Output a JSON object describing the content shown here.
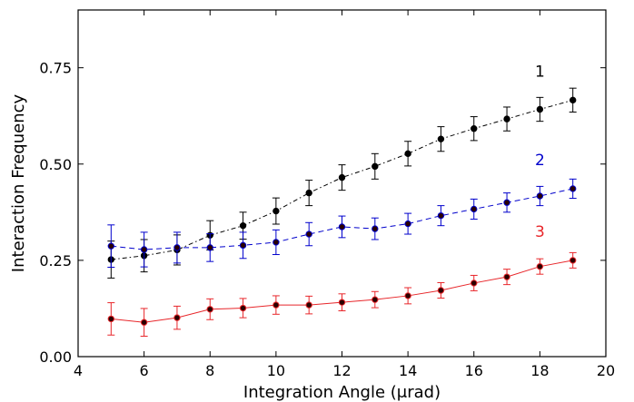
{
  "chart_data": {
    "type": "line",
    "title": "",
    "xlabel": "Integration Angle (μrad)",
    "ylabel": "Interaction Frequency",
    "xlim": [
      4,
      20
    ],
    "ylim": [
      0,
      0.9
    ],
    "xticks": [
      4,
      6,
      8,
      10,
      12,
      14,
      16,
      18,
      20
    ],
    "yticks": [
      0.0,
      0.25,
      0.5,
      0.75
    ],
    "ytick_labels": [
      "0.00",
      "0.25",
      "0.50",
      "0.75"
    ],
    "grid": false,
    "x": [
      5,
      6,
      7,
      8,
      9,
      10,
      11,
      12,
      13,
      14,
      15,
      16,
      17,
      18,
      19
    ],
    "series": [
      {
        "name": "1",
        "color": "#000000",
        "line_style": "dash-dot",
        "values": [
          0.252,
          0.262,
          0.277,
          0.315,
          0.34,
          0.378,
          0.425,
          0.465,
          0.494,
          0.527,
          0.565,
          0.592,
          0.617,
          0.642,
          0.666
        ],
        "errors": [
          0.048,
          0.042,
          0.039,
          0.038,
          0.035,
          0.034,
          0.033,
          0.033,
          0.033,
          0.032,
          0.032,
          0.031,
          0.031,
          0.031,
          0.031
        ]
      },
      {
        "name": "2",
        "color": "#0000cc",
        "line_style": "dashed",
        "values": [
          0.287,
          0.278,
          0.283,
          0.283,
          0.289,
          0.297,
          0.318,
          0.337,
          0.332,
          0.345,
          0.366,
          0.383,
          0.4,
          0.417,
          0.436
        ],
        "errors": [
          0.055,
          0.045,
          0.04,
          0.036,
          0.034,
          0.032,
          0.03,
          0.028,
          0.028,
          0.027,
          0.026,
          0.026,
          0.025,
          0.025,
          0.025
        ]
      },
      {
        "name": "3",
        "color": "#e8262a",
        "line_style": "solid",
        "values": [
          0.098,
          0.089,
          0.101,
          0.123,
          0.126,
          0.134,
          0.134,
          0.141,
          0.148,
          0.158,
          0.172,
          0.191,
          0.207,
          0.234,
          0.25
        ],
        "errors": [
          0.042,
          0.036,
          0.03,
          0.027,
          0.025,
          0.024,
          0.023,
          0.022,
          0.021,
          0.021,
          0.02,
          0.02,
          0.02,
          0.02,
          0.02
        ]
      }
    ]
  }
}
